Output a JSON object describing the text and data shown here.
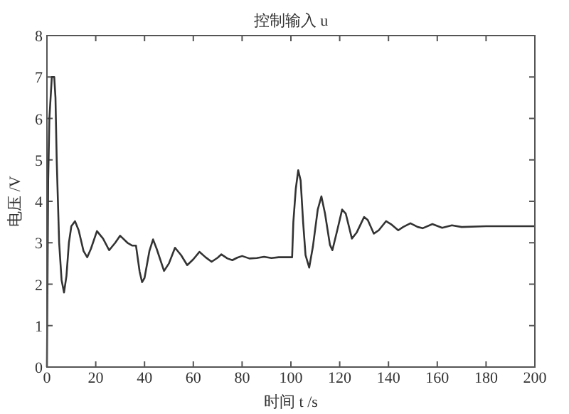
{
  "chart_data": {
    "type": "line",
    "title": "控制输入 u",
    "xlabel": "时间 t /s",
    "ylabel": "电压 /V",
    "xlim": [
      0,
      200
    ],
    "ylim": [
      0,
      8
    ],
    "xticks": [
      0,
      20,
      40,
      60,
      80,
      100,
      120,
      140,
      160,
      180,
      200
    ],
    "yticks": [
      0,
      1,
      2,
      3,
      4,
      5,
      6,
      7,
      8
    ],
    "grid": false,
    "series": [
      {
        "color": "#333333",
        "x": [
          0,
          0.5,
          1,
          2,
          3,
          3.5,
          4,
          5,
          6,
          7,
          8,
          9,
          10,
          11.5,
          13,
          15,
          16.5,
          18,
          20.5,
          23,
          25.5,
          28,
          30,
          33,
          35,
          36.5,
          38,
          39,
          40,
          42,
          43.5,
          45,
          48,
          50,
          52.5,
          55,
          57.5,
          60,
          62.5,
          65,
          67.5,
          70,
          71.5,
          74,
          76,
          78,
          80,
          83,
          86,
          89,
          92,
          95,
          100.5,
          101,
          102,
          103,
          104,
          105,
          106,
          107.5,
          109,
          111,
          112.5,
          114,
          116,
          117,
          119,
          121,
          122.5,
          125,
          127,
          130,
          131.5,
          134,
          136,
          139,
          141,
          144,
          146,
          149,
          152,
          154,
          158,
          162,
          166,
          170,
          180,
          200
        ],
        "values": [
          0,
          4.5,
          6,
          7,
          7,
          6.5,
          5,
          3,
          2.1,
          1.8,
          2.2,
          3,
          3.4,
          3.52,
          3.3,
          2.8,
          2.65,
          2.85,
          3.28,
          3.1,
          2.82,
          3.0,
          3.17,
          3.0,
          2.93,
          2.93,
          2.3,
          2.05,
          2.15,
          2.8,
          3.08,
          2.85,
          2.32,
          2.5,
          2.88,
          2.7,
          2.46,
          2.6,
          2.78,
          2.65,
          2.54,
          2.64,
          2.72,
          2.62,
          2.58,
          2.64,
          2.68,
          2.62,
          2.63,
          2.66,
          2.63,
          2.65,
          2.65,
          3.5,
          4.3,
          4.75,
          4.5,
          3.5,
          2.7,
          2.4,
          2.9,
          3.8,
          4.12,
          3.7,
          2.95,
          2.82,
          3.3,
          3.8,
          3.7,
          3.1,
          3.25,
          3.62,
          3.55,
          3.22,
          3.3,
          3.52,
          3.45,
          3.3,
          3.38,
          3.47,
          3.38,
          3.35,
          3.45,
          3.36,
          3.42,
          3.38,
          3.4,
          3.4
        ]
      }
    ]
  }
}
